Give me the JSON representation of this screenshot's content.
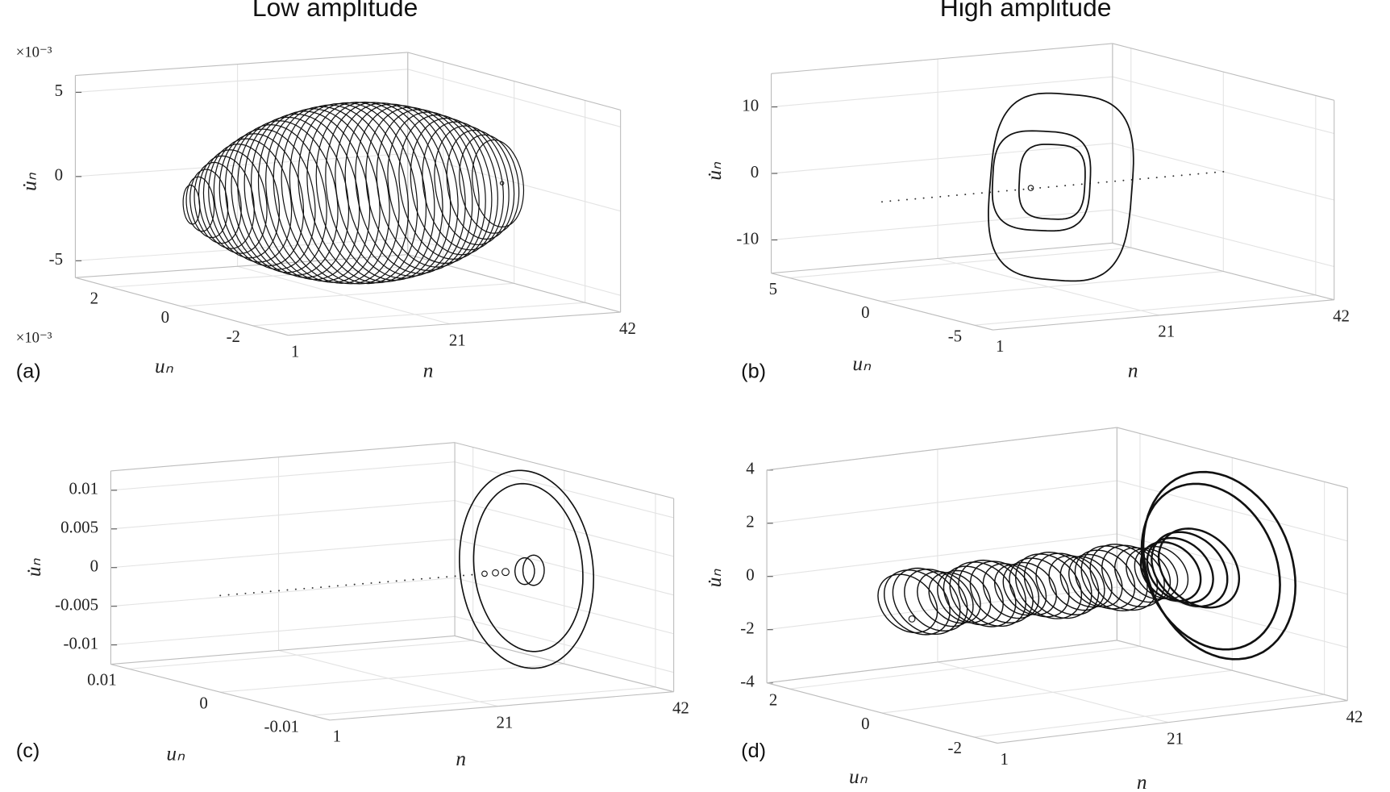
{
  "column_titles": [
    "Low amplitude",
    "High amplitude"
  ],
  "panels": [
    {
      "label": "(a)",
      "x_label": "n",
      "y_label": "uₙ",
      "z_label": "u̇ₙ",
      "z_multiplier": "×10⁻³",
      "y_multiplier": "×10⁻³",
      "x_lim": [
        1,
        42
      ],
      "y_lim": [
        -3,
        3
      ],
      "z_lim": [
        -6,
        6
      ],
      "x_ticks": [
        1,
        21,
        42
      ],
      "y_ticks": [
        2,
        0,
        -2
      ],
      "z_ticks": [
        5,
        0,
        -5
      ]
    },
    {
      "label": "(b)",
      "x_label": "n",
      "y_label": "uₙ",
      "z_label": "u̇ₙ",
      "x_lim": [
        1,
        42
      ],
      "y_lim": [
        -6,
        6
      ],
      "z_lim": [
        -15,
        15
      ],
      "x_ticks": [
        1,
        21,
        42
      ],
      "y_ticks": [
        5,
        0,
        -5
      ],
      "z_ticks": [
        10,
        0,
        -10
      ]
    },
    {
      "label": "(c)",
      "x_label": "n",
      "y_label": "uₙ",
      "z_label": "u̇ₙ",
      "x_lim": [
        1,
        42
      ],
      "y_lim": [
        -0.012,
        0.012
      ],
      "z_lim": [
        -0.0125,
        0.0125
      ],
      "x_ticks": [
        1,
        21,
        42
      ],
      "y_ticks": [
        0.01,
        0,
        -0.01
      ],
      "z_ticks": [
        0.01,
        0.005,
        0,
        -0.005,
        -0.01
      ]
    },
    {
      "label": "(d)",
      "x_label": "n",
      "y_label": "uₙ",
      "z_label": "u̇ₙ",
      "x_lim": [
        1,
        42
      ],
      "y_lim": [
        -2.5,
        2.5
      ],
      "z_lim": [
        -4,
        4
      ],
      "x_ticks": [
        1,
        21,
        42
      ],
      "y_ticks": [
        2,
        0,
        -2
      ],
      "z_ticks": [
        4,
        2,
        0,
        -2,
        -4
      ]
    }
  ]
}
